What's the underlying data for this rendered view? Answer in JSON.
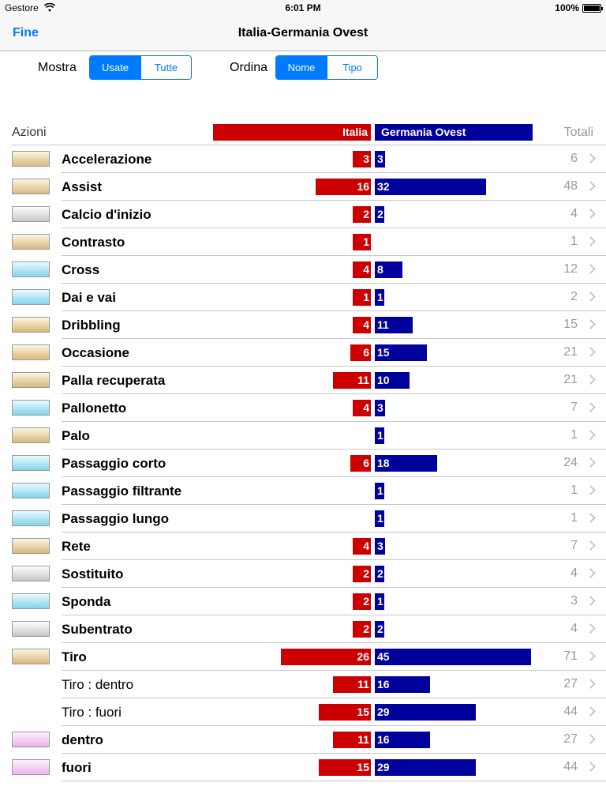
{
  "status": {
    "carrier": "Gestore",
    "time": "6:01 PM",
    "battery": "100%"
  },
  "nav": {
    "done": "Fine",
    "title": "Italia-Germania Ovest"
  },
  "show": {
    "label": "Mostra",
    "options": [
      "Usate",
      "Tutte"
    ],
    "selected": "Usate"
  },
  "sort": {
    "label": "Ordina",
    "options": [
      "Nome",
      "Tipo"
    ],
    "selected": "Nome"
  },
  "header": {
    "actions": "Azioni",
    "team_a": "Italia",
    "team_b": "Germania Ovest",
    "totals": "Totali"
  },
  "colors": {
    "team_a": "#cc0000",
    "team_b": "#00009c",
    "accent": "#007aff"
  },
  "rows": [
    {
      "name": "Accelerazione",
      "swatch": "gold",
      "a": 3,
      "b": 3,
      "total": 6
    },
    {
      "name": "Assist",
      "swatch": "gold",
      "a": 16,
      "b": 32,
      "total": 48
    },
    {
      "name": "Calcio d'inizio",
      "swatch": "gray",
      "a": 2,
      "b": 2,
      "total": 4
    },
    {
      "name": "Contrasto",
      "swatch": "gold",
      "a": 1,
      "b": null,
      "total": 1
    },
    {
      "name": "Cross",
      "swatch": "cyan",
      "a": 4,
      "b": 8,
      "total": 12
    },
    {
      "name": "Dai e vai",
      "swatch": "cyan",
      "a": 1,
      "b": 1,
      "total": 2
    },
    {
      "name": "Dribbling",
      "swatch": "gold",
      "a": 4,
      "b": 11,
      "total": 15
    },
    {
      "name": "Occasione",
      "swatch": "gold",
      "a": 6,
      "b": 15,
      "total": 21
    },
    {
      "name": "Palla recuperata",
      "swatch": "gold",
      "a": 11,
      "b": 10,
      "total": 21
    },
    {
      "name": "Pallonetto",
      "swatch": "cyan",
      "a": 4,
      "b": 3,
      "total": 7
    },
    {
      "name": "Palo",
      "swatch": "gold",
      "a": null,
      "b": 1,
      "total": 1
    },
    {
      "name": "Passaggio corto",
      "swatch": "cyan",
      "a": 6,
      "b": 18,
      "total": 24
    },
    {
      "name": "Passaggio filtrante",
      "swatch": "cyan",
      "a": null,
      "b": 1,
      "total": 1
    },
    {
      "name": "Passaggio lungo",
      "swatch": "cyan",
      "a": null,
      "b": 1,
      "total": 1
    },
    {
      "name": "Rete",
      "swatch": "gold",
      "a": 4,
      "b": 3,
      "total": 7
    },
    {
      "name": "Sostituito",
      "swatch": "gray",
      "a": 2,
      "b": 2,
      "total": 4
    },
    {
      "name": "Sponda",
      "swatch": "cyan",
      "a": 2,
      "b": 1,
      "total": 3
    },
    {
      "name": "Subentrato",
      "swatch": "gray",
      "a": 2,
      "b": 2,
      "total": 4
    },
    {
      "name": "Tiro",
      "swatch": "gold",
      "a": 26,
      "b": 45,
      "total": 71
    },
    {
      "name": "Tiro : dentro",
      "swatch": null,
      "a": 11,
      "b": 16,
      "total": 27
    },
    {
      "name": "Tiro : fuori",
      "swatch": null,
      "a": 15,
      "b": 29,
      "total": 44
    },
    {
      "name": "dentro",
      "swatch": "pink",
      "a": 11,
      "b": 16,
      "total": 27
    },
    {
      "name": "fuori",
      "swatch": "pink",
      "a": 15,
      "b": 29,
      "total": 44
    }
  ]
}
